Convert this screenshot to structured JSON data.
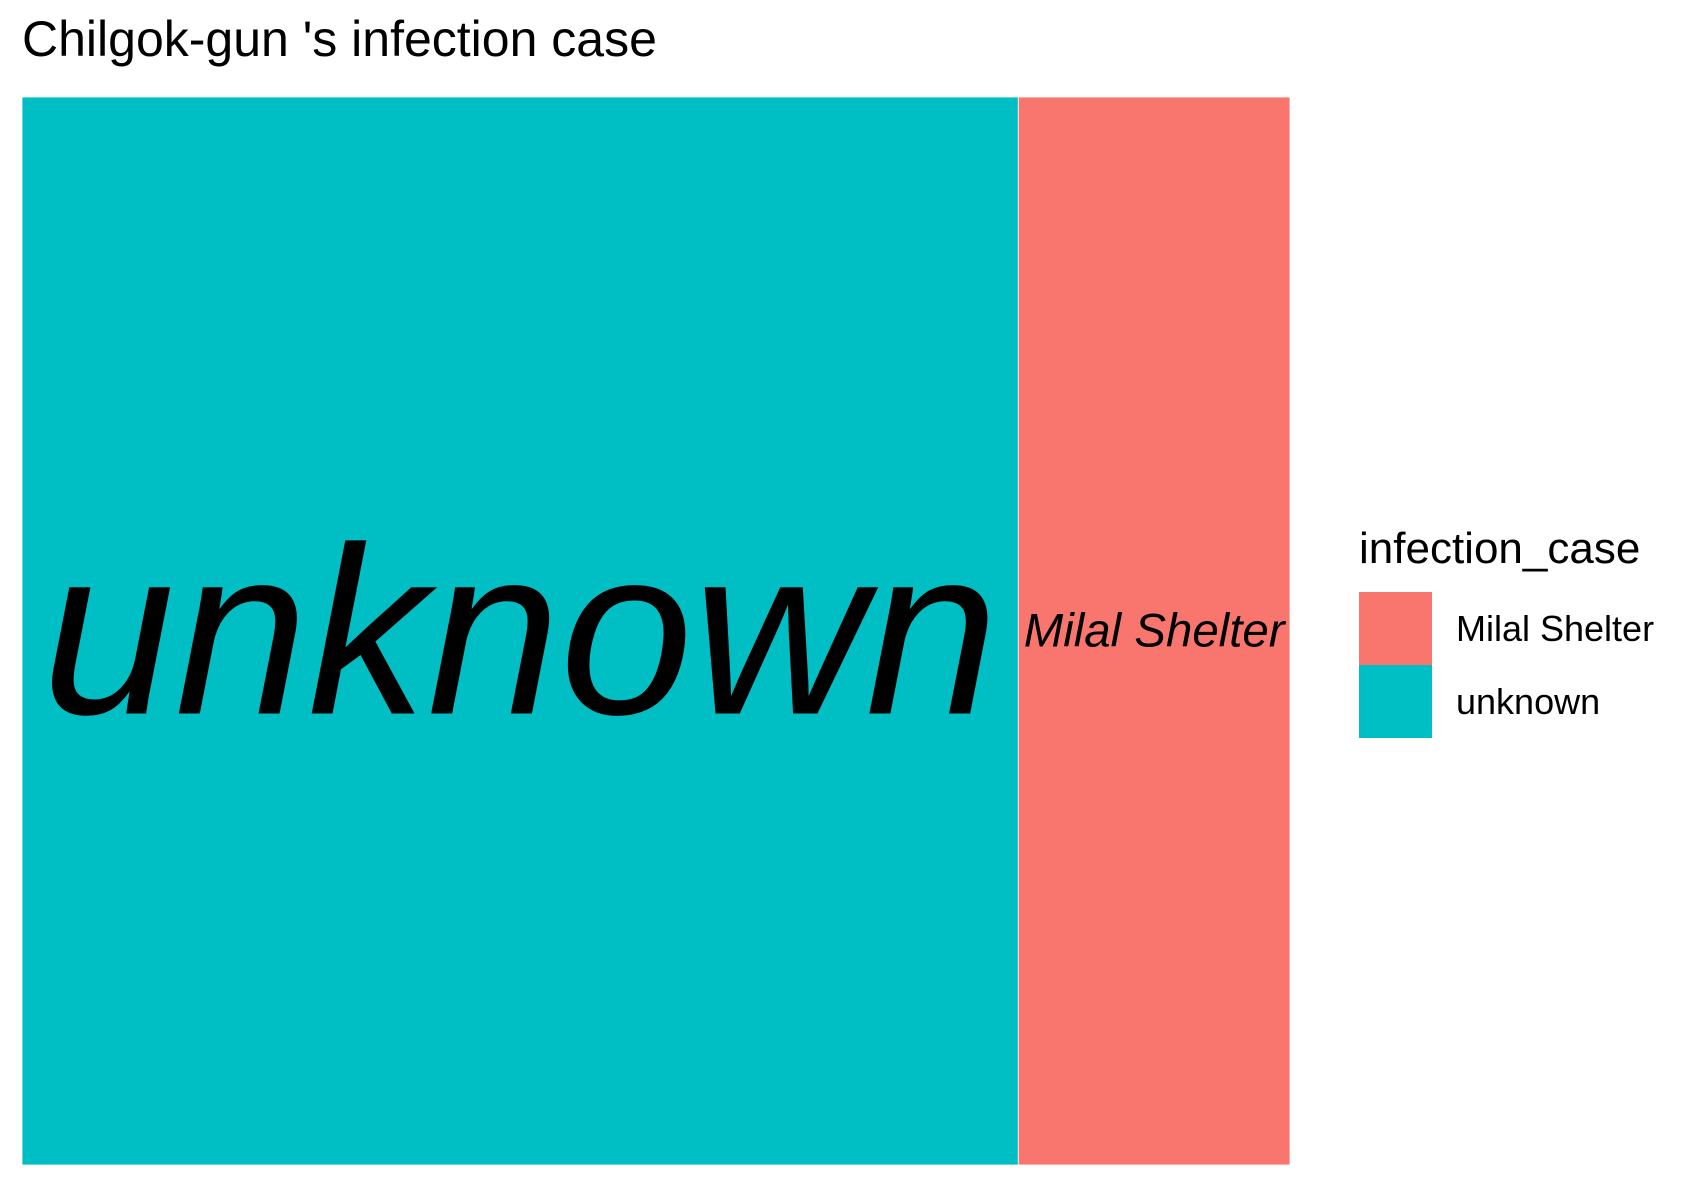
{
  "chart_data": {
    "type": "treemap",
    "title": "Chilgok-gun 's infection case",
    "legend": {
      "title": "infection_case",
      "position": "right"
    },
    "items": [
      {
        "label": "unknown",
        "value": 11,
        "color": "#00BFC4"
      },
      {
        "label": "Milal Shelter",
        "value": 3,
        "color": "#F8766D"
      }
    ],
    "legend_items": [
      {
        "label": "Milal Shelter",
        "color": "#F8766D"
      },
      {
        "label": "unknown",
        "color": "#00BFC4"
      }
    ]
  }
}
